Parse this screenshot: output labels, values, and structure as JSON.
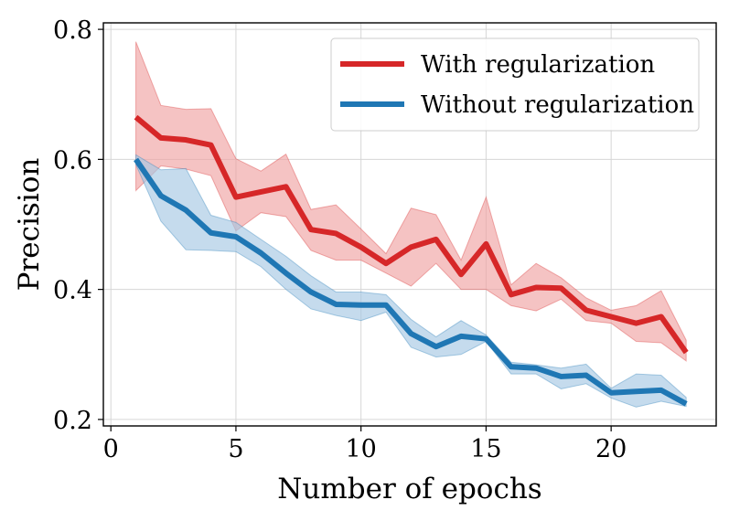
{
  "chart_data": {
    "type": "line",
    "title": "",
    "xlabel": "Number of epochs",
    "ylabel": "Precision",
    "xlim": [
      -0.3,
      24.2
    ],
    "ylim": [
      0.19,
      0.81
    ],
    "xticks": [
      0,
      5,
      10,
      15,
      20
    ],
    "xtick_labels": [
      "0",
      "5",
      "10",
      "15",
      "20"
    ],
    "yticks": [
      0.2,
      0.4,
      0.6,
      0.8
    ],
    "ytick_labels": [
      "0.2",
      "0.4",
      "0.6",
      "0.8"
    ],
    "grid": true,
    "legend_position": "top-right",
    "x": [
      1,
      2,
      3,
      4,
      5,
      6,
      7,
      8,
      9,
      10,
      11,
      12,
      13,
      14,
      15,
      16,
      17,
      18,
      19,
      20,
      21,
      22,
      23
    ],
    "series": [
      {
        "name": "With regularization",
        "color": "#d62728",
        "band_color": "#f0a3a3",
        "values": [
          0.665,
          0.633,
          0.63,
          0.622,
          0.542,
          0.55,
          0.558,
          0.492,
          0.486,
          0.465,
          0.44,
          0.465,
          0.477,
          0.423,
          0.47,
          0.392,
          0.403,
          0.402,
          0.368,
          0.358,
          0.348,
          0.358,
          0.303
        ],
        "lower": [
          0.552,
          0.59,
          0.585,
          0.575,
          0.49,
          0.518,
          0.512,
          0.46,
          0.445,
          0.445,
          0.425,
          0.405,
          0.44,
          0.4,
          0.4,
          0.375,
          0.367,
          0.385,
          0.352,
          0.348,
          0.32,
          0.318,
          0.29
        ],
        "upper": [
          0.781,
          0.683,
          0.677,
          0.678,
          0.601,
          0.582,
          0.608,
          0.523,
          0.53,
          0.493,
          0.455,
          0.525,
          0.515,
          0.445,
          0.542,
          0.407,
          0.44,
          0.418,
          0.387,
          0.368,
          0.375,
          0.398,
          0.322
        ]
      },
      {
        "name": "Without regularization",
        "color": "#1f77b4",
        "band_color": "#a6c8e4",
        "values": [
          0.6,
          0.544,
          0.522,
          0.487,
          0.481,
          0.456,
          0.425,
          0.396,
          0.377,
          0.376,
          0.376,
          0.332,
          0.312,
          0.328,
          0.324,
          0.281,
          0.279,
          0.266,
          0.268,
          0.241,
          0.243,
          0.245,
          0.224
        ],
        "lower": [
          0.592,
          0.505,
          0.461,
          0.46,
          0.458,
          0.435,
          0.4,
          0.37,
          0.36,
          0.352,
          0.365,
          0.311,
          0.296,
          0.3,
          0.32,
          0.27,
          0.27,
          0.247,
          0.255,
          0.233,
          0.219,
          0.228,
          0.22
        ],
        "upper": [
          0.607,
          0.584,
          0.586,
          0.514,
          0.503,
          0.477,
          0.451,
          0.421,
          0.396,
          0.396,
          0.392,
          0.354,
          0.327,
          0.352,
          0.33,
          0.288,
          0.284,
          0.279,
          0.285,
          0.248,
          0.27,
          0.268,
          0.234
        ]
      }
    ]
  }
}
